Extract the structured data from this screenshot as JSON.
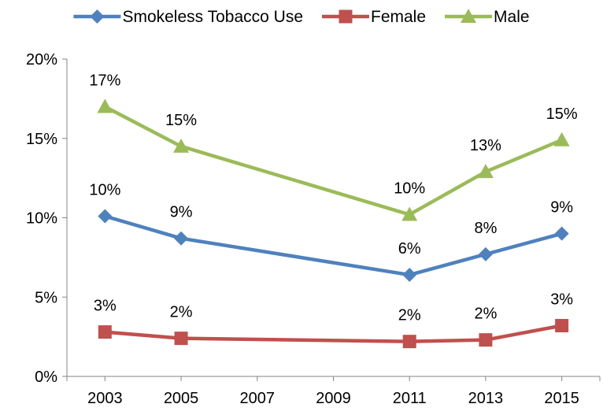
{
  "chart_data": {
    "type": "line",
    "title": "",
    "xlabel": "",
    "ylabel": "",
    "x_ticks": [
      "2003",
      "2005",
      "2007",
      "2009",
      "2011",
      "2013",
      "2015"
    ],
    "y_ticks": [
      "0%",
      "5%",
      "10%",
      "15%",
      "20%"
    ],
    "ylim": [
      0,
      20
    ],
    "xlim": [
      2002,
      2016
    ],
    "grid": false,
    "legend_position": "top",
    "series": [
      {
        "name": "Smokeless Tobacco Use",
        "color": "#4f81bd",
        "marker": "diamond",
        "x": [
          2003,
          2005,
          2011,
          2013,
          2015
        ],
        "values": [
          10.1,
          8.7,
          6.4,
          7.7,
          9.0
        ],
        "labels": [
          "10%",
          "9%",
          "6%",
          "8%",
          "9%"
        ]
      },
      {
        "name": "Female",
        "color": "#c0504d",
        "marker": "square",
        "x": [
          2003,
          2005,
          2011,
          2013,
          2015
        ],
        "values": [
          2.8,
          2.4,
          2.2,
          2.3,
          3.2
        ],
        "labels": [
          "3%",
          "2%",
          "2%",
          "2%",
          "3%"
        ]
      },
      {
        "name": "Male",
        "color": "#9bbb59",
        "marker": "triangle",
        "x": [
          2003,
          2005,
          2011,
          2013,
          2015
        ],
        "values": [
          17.0,
          14.5,
          10.2,
          12.9,
          14.9
        ],
        "labels": [
          "17%",
          "15%",
          "10%",
          "13%",
          "15%"
        ]
      }
    ]
  }
}
